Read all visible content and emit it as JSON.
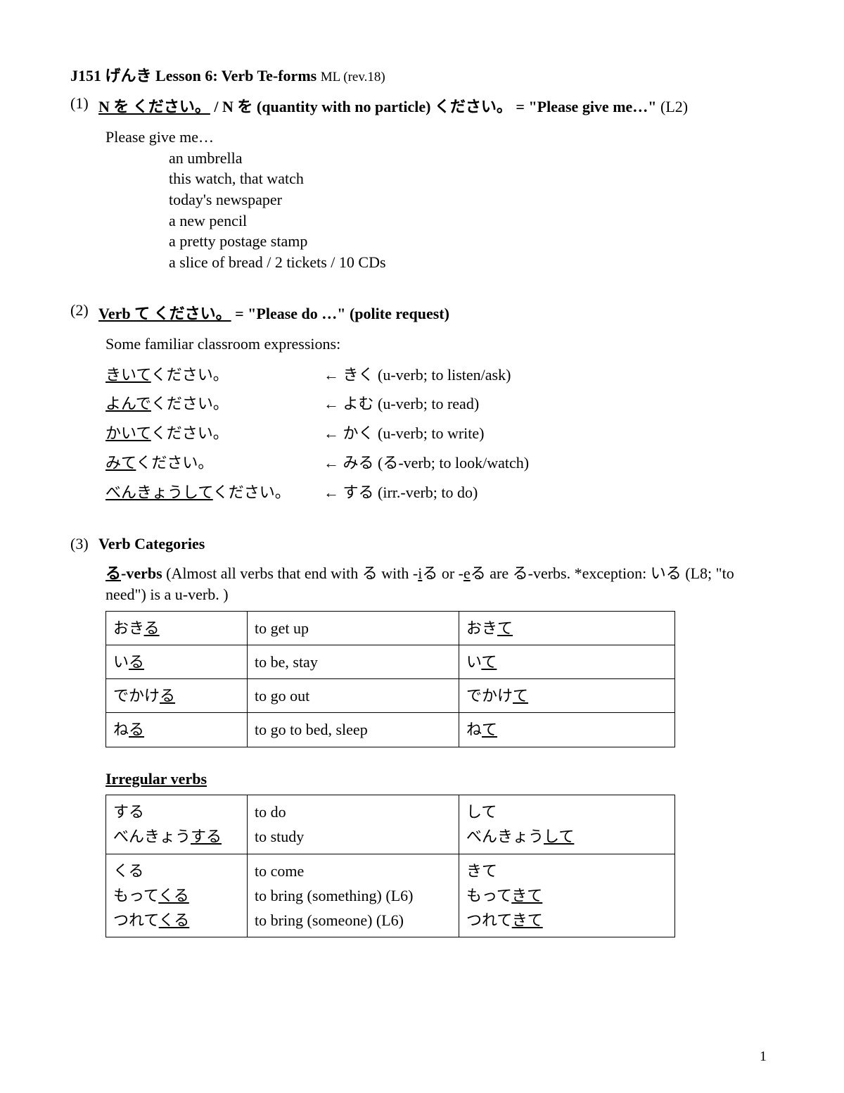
{
  "title": {
    "course": "J151",
    "jp_word": "げんき",
    "lesson": "Lesson 6: Verb Te-forms",
    "rev": "ML (rev.18)"
  },
  "sect1": {
    "num": "(1)",
    "bu1": "N を ください。",
    "slash": "/ N",
    "o": "を",
    "paren": "(quantity with no particle)",
    "kudasai": "ください。",
    "eq": "= \"Please give me…\"",
    "l2": "(L2)",
    "intro": "Please give me…",
    "items": [
      "an umbrella",
      "this watch, that watch",
      "today's newspaper",
      "a new pencil",
      "a pretty postage stamp",
      "a slice of bread / 2 tickets / 10 CDs"
    ]
  },
  "sect2": {
    "num": "(2)",
    "bu": "Verb て ください。",
    "rest": "= \"Please do …\"  (polite request)",
    "intro": "Some familiar classroom expressions:",
    "pairs": [
      {
        "l_u": "きいて",
        "l_rest": "ください。",
        "r": "← きく (u-verb; to listen/ask)"
      },
      {
        "l_u": "よんで",
        "l_rest": "ください。",
        "r": "← よむ (u-verb; to read)"
      },
      {
        "l_u": "かいて",
        "l_rest": "ください。",
        "r": "← かく (u-verb; to write)"
      },
      {
        "l_u": "みて",
        "l_rest": "ください。",
        "r": "← みる (る-verb; to look/watch)"
      },
      {
        "l_u": "べんきょうして",
        "l_rest": "ください。",
        "r": "← する (irr.-verb; to do)"
      }
    ]
  },
  "sect3": {
    "num": "(3)",
    "heading": "Verb Categories",
    "ru_head_u": "る",
    "ru_head_b": "-verbs",
    "ru_desc1": " (Almost all verbs that end with る with -",
    "ru_desc_i": "i",
    "ru_desc2": "る or -",
    "ru_desc_e": "e",
    "ru_desc3": "る are る-verbs.  *exception: いる (L8; \"to need\") is a u-verb. )",
    "ru_rows": [
      {
        "a_pre": "おき",
        "a_u": "る",
        "b": "to get up",
        "c_pre": "おき",
        "c_u": "て"
      },
      {
        "a_pre": "い",
        "a_u": "る",
        "b": "to be, stay",
        "c_pre": "い",
        "c_u": "て"
      },
      {
        "a_pre": "でかけ",
        "a_u": "る",
        "b": "to go out",
        "c_pre": "でかけ",
        "c_u": "て"
      },
      {
        "a_pre": "ね",
        "a_u": "る",
        "b": "to go to bed, sleep",
        "c_pre": "ね",
        "c_u": "て"
      }
    ],
    "irr_heading": "Irregular verbs",
    "irr_rows": [
      {
        "a": [
          "する",
          {
            "pre": "べんきょう",
            "u": "する"
          }
        ],
        "b": [
          "to do",
          "to study"
        ],
        "c": [
          "して",
          {
            "pre": "べんきょう",
            "u": "して"
          }
        ]
      },
      {
        "a": [
          "くる",
          {
            "pre": "もって",
            "u": "くる"
          },
          {
            "pre": "つれて",
            "u": "くる"
          }
        ],
        "b": [
          "to come",
          "to bring (something) (L6)",
          "to bring (someone) (L6)"
        ],
        "c": [
          "きて",
          {
            "pre": "もって",
            "u": "きて"
          },
          {
            "pre": "つれて",
            "u": "きて"
          }
        ]
      }
    ]
  },
  "pagenum": "1"
}
